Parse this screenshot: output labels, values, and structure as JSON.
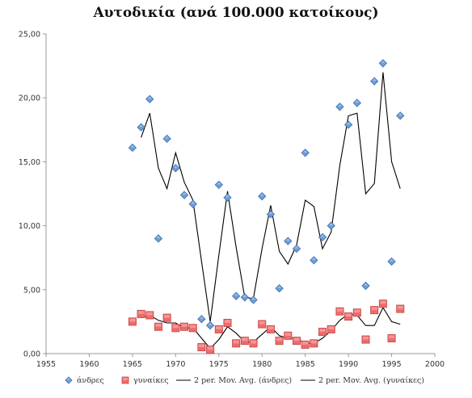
{
  "chart_data": {
    "type": "scatter",
    "title": "Αυτοδικία (ανά 100.000 κατοίκους)",
    "xlabel": "",
    "ylabel": "",
    "xlim": [
      1955,
      2000
    ],
    "ylim": [
      0,
      25
    ],
    "x_ticks": [
      "1955",
      "1960",
      "1965",
      "1970",
      "1975",
      "1980",
      "1985",
      "1990",
      "1995",
      "2000"
    ],
    "y_ticks": [
      "0,00",
      "5,00",
      "10,00",
      "15,00",
      "20,00",
      "25,00"
    ],
    "grid": false,
    "legend_position": "bottom",
    "series": [
      {
        "name": "άνδρες",
        "marker": "diamond",
        "color": "#6d9ed8",
        "x": [
          1965,
          1966,
          1967,
          1968,
          1969,
          1970,
          1971,
          1972,
          1973,
          1974,
          1975,
          1976,
          1977,
          1978,
          1979,
          1980,
          1981,
          1982,
          1983,
          1984,
          1985,
          1986,
          1987,
          1988,
          1989,
          1990,
          1991,
          1992,
          1993,
          1994,
          1995,
          1996
        ],
        "y": [
          16.1,
          17.7,
          19.9,
          9.0,
          16.8,
          14.5,
          12.4,
          11.7,
          2.7,
          2.2,
          13.2,
          12.2,
          4.5,
          4.4,
          4.2,
          12.3,
          10.9,
          5.1,
          8.8,
          8.2,
          15.7,
          7.3,
          9.1,
          10.0,
          19.3,
          17.9,
          19.6,
          5.3,
          21.3,
          22.7,
          7.2,
          18.6
        ]
      },
      {
        "name": "γυναίκες",
        "marker": "square",
        "color": "#ee6b6b",
        "x": [
          1965,
          1966,
          1967,
          1968,
          1969,
          1970,
          1971,
          1972,
          1973,
          1974,
          1975,
          1976,
          1977,
          1978,
          1979,
          1980,
          1981,
          1982,
          1983,
          1984,
          1985,
          1986,
          1987,
          1988,
          1989,
          1990,
          1991,
          1992,
          1993,
          1994,
          1995,
          1996
        ],
        "y": [
          2.5,
          3.1,
          3.0,
          2.1,
          2.8,
          2.0,
          2.1,
          2.0,
          0.5,
          0.3,
          1.9,
          2.4,
          0.8,
          1.0,
          0.8,
          2.3,
          1.9,
          1.0,
          1.4,
          1.0,
          0.7,
          0.8,
          1.7,
          1.9,
          3.3,
          2.9,
          3.2,
          1.1,
          3.4,
          3.9,
          1.2,
          3.5
        ]
      },
      {
        "name": "2 per. Mov. Avg. (άνδρες)",
        "type": "line",
        "color": "#000000",
        "x": [
          1966,
          1967,
          1968,
          1969,
          1970,
          1971,
          1972,
          1973,
          1974,
          1975,
          1976,
          1977,
          1978,
          1979,
          1980,
          1981,
          1982,
          1983,
          1984,
          1985,
          1986,
          1987,
          1988,
          1989,
          1990,
          1991,
          1992,
          1993,
          1994,
          1995,
          1996
        ],
        "y": [
          16.9,
          18.8,
          14.5,
          12.9,
          15.7,
          13.4,
          12.0,
          7.2,
          2.5,
          7.7,
          12.7,
          8.3,
          4.4,
          4.3,
          8.2,
          11.6,
          8.0,
          7.0,
          8.5,
          12.0,
          11.5,
          8.2,
          9.5,
          14.7,
          18.6,
          18.8,
          12.5,
          13.3,
          22.0,
          15.0,
          12.9
        ]
      },
      {
        "name": "2 per. Mov. Avg. (γυναίκες)",
        "type": "line",
        "color": "#000000",
        "x": [
          1966,
          1967,
          1968,
          1969,
          1970,
          1971,
          1972,
          1973,
          1974,
          1975,
          1976,
          1977,
          1978,
          1979,
          1980,
          1981,
          1982,
          1983,
          1984,
          1985,
          1986,
          1987,
          1988,
          1989,
          1990,
          1991,
          1992,
          1993,
          1994,
          1995,
          1996
        ],
        "y": [
          2.8,
          3.0,
          2.6,
          2.4,
          2.4,
          2.0,
          2.0,
          1.2,
          0.4,
          1.1,
          2.1,
          1.6,
          0.9,
          0.9,
          1.5,
          2.1,
          1.4,
          1.2,
          1.2,
          0.8,
          0.8,
          1.2,
          1.8,
          2.6,
          3.1,
          3.0,
          2.2,
          2.2,
          3.6,
          2.5,
          2.3
        ]
      }
    ]
  }
}
